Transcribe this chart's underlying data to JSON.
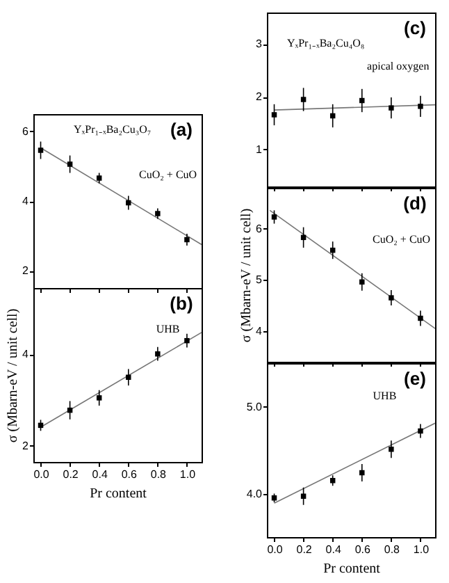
{
  "chart_data": [
    {
      "type": "scatter",
      "annotations": [
        "(a)",
        "YₓPr₁₋ₓBa₂Cu₃O₇",
        "CuO₂ + CuO"
      ],
      "x": [
        0,
        0.2,
        0.4,
        0.6,
        0.8,
        1.0
      ],
      "xlim": [
        -0.05,
        1.1
      ],
      "xticks": [
        0,
        0.2,
        0.4,
        0.6,
        0.8,
        1
      ],
      "ylim": [
        1.5,
        6.5
      ],
      "yticks": [
        2,
        4,
        6
      ],
      "tick_labels": "y",
      "series": [
        {
          "type": "line",
          "color": "#777777",
          "x": [
            0,
            1.1
          ],
          "values": [
            5.53,
            2.75
          ]
        },
        {
          "type": "scatter",
          "marker": "square",
          "color": "#000000",
          "values": [
            5.46,
            5.06,
            4.66,
            3.95,
            3.64,
            2.89
          ],
          "errors": [
            0.25,
            0.25,
            0.15,
            0.2,
            0.15,
            0.17
          ]
        }
      ]
    },
    {
      "type": "scatter",
      "ylabel": "σ (Mbarn-eV / unit cell)",
      "xlabel": "Pr content",
      "annotations": [
        "(b)",
        "UHB"
      ],
      "x": [
        0,
        0.2,
        0.4,
        0.6,
        0.8,
        1.0
      ],
      "xlim": [
        -0.05,
        1.1
      ],
      "xticks": [
        {
          "value": 0,
          "label": "0.0"
        },
        {
          "value": 0.2,
          "label": "0.2"
        },
        {
          "value": 0.4,
          "label": "0.4"
        },
        {
          "value": 0.6,
          "label": "0.6"
        },
        {
          "value": 0.8,
          "label": "0.8"
        },
        {
          "value": 1,
          "label": "1.0"
        }
      ],
      "ylim": [
        1.65,
        5.45
      ],
      "yticks": [
        2,
        4
      ],
      "series": [
        {
          "type": "line",
          "color": "#777777",
          "x": [
            0,
            1.1
          ],
          "values": [
            2.41,
            4.48
          ]
        },
        {
          "type": "scatter",
          "marker": "square",
          "color": "#000000",
          "values": [
            2.45,
            2.78,
            3.05,
            3.5,
            4.01,
            4.3
          ],
          "errors": [
            0.12,
            0.2,
            0.17,
            0.18,
            0.15,
            0.15
          ]
        }
      ]
    },
    {
      "type": "scatter",
      "annotations": [
        "(c)",
        "YₓPr₁₋ₓBa₂Cu₄O₈",
        "apical oxygen"
      ],
      "x": [
        0,
        0.2,
        0.4,
        0.6,
        0.8,
        1.0
      ],
      "xlim": [
        -0.05,
        1.1
      ],
      "xticks": [
        0,
        0.2,
        0.4,
        0.6,
        0.8,
        1
      ],
      "ylim": [
        0.3,
        3.6
      ],
      "yticks": [
        1,
        2,
        3
      ],
      "tick_labels": "y",
      "series": [
        {
          "type": "line",
          "color": "#777777",
          "x": [
            0,
            1.1
          ],
          "values": [
            1.75,
            1.85
          ]
        },
        {
          "type": "scatter",
          "marker": "square",
          "color": "#000000",
          "values": [
            1.66,
            1.95,
            1.64,
            1.93,
            1.79,
            1.82
          ],
          "errors": [
            0.2,
            0.22,
            0.22,
            0.22,
            0.2,
            0.2
          ]
        }
      ]
    },
    {
      "type": "scatter",
      "ylabel": "σ (Mbarn-eV / unit cell)",
      "annotations": [
        "(d)",
        "CuO₂ + CuO"
      ],
      "x": [
        0,
        0.2,
        0.4,
        0.6,
        0.8,
        1.0
      ],
      "xlim": [
        -0.05,
        1.1
      ],
      "xticks": [
        0,
        0.2,
        0.4,
        0.6,
        0.8,
        1
      ],
      "ylim": [
        3.4,
        6.8
      ],
      "yticks": [
        4,
        5,
        6
      ],
      "tick_labels": "y",
      "series": [
        {
          "type": "line",
          "color": "#777777",
          "x": [
            -0.03,
            1.1
          ],
          "values": [
            6.36,
            4.05
          ]
        },
        {
          "type": "scatter",
          "marker": "square",
          "color": "#000000",
          "values": [
            6.23,
            5.83,
            5.58,
            4.96,
            4.65,
            4.25
          ],
          "errors": [
            0.13,
            0.2,
            0.17,
            0.17,
            0.15,
            0.15
          ]
        }
      ]
    },
    {
      "type": "scatter",
      "xlabel": "Pr content",
      "annotations": [
        "(e)",
        "UHB"
      ],
      "x": [
        0,
        0.2,
        0.4,
        0.6,
        0.8,
        1.0
      ],
      "xlim": [
        -0.05,
        1.1
      ],
      "xticks": [
        {
          "value": 0,
          "label": "0.0"
        },
        {
          "value": 0.2,
          "label": "0.2"
        },
        {
          "value": 0.4,
          "label": "0.4"
        },
        {
          "value": 0.6,
          "label": "0.6"
        },
        {
          "value": 0.8,
          "label": "0.8"
        },
        {
          "value": 1,
          "label": "1.0"
        }
      ],
      "ylim": [
        3.5,
        5.5
      ],
      "yticks": [
        {
          "value": 4,
          "label": "4.0"
        },
        {
          "value": 5,
          "label": "5.0"
        }
      ],
      "series": [
        {
          "type": "line",
          "color": "#777777",
          "x": [
            0,
            1.1
          ],
          "values": [
            3.89,
            4.81
          ]
        },
        {
          "type": "scatter",
          "marker": "square",
          "color": "#000000",
          "values": [
            3.95,
            3.97,
            4.15,
            4.24,
            4.51,
            4.72
          ],
          "errors": [
            0.05,
            0.1,
            0.06,
            0.1,
            0.1,
            0.08
          ]
        }
      ]
    }
  ]
}
